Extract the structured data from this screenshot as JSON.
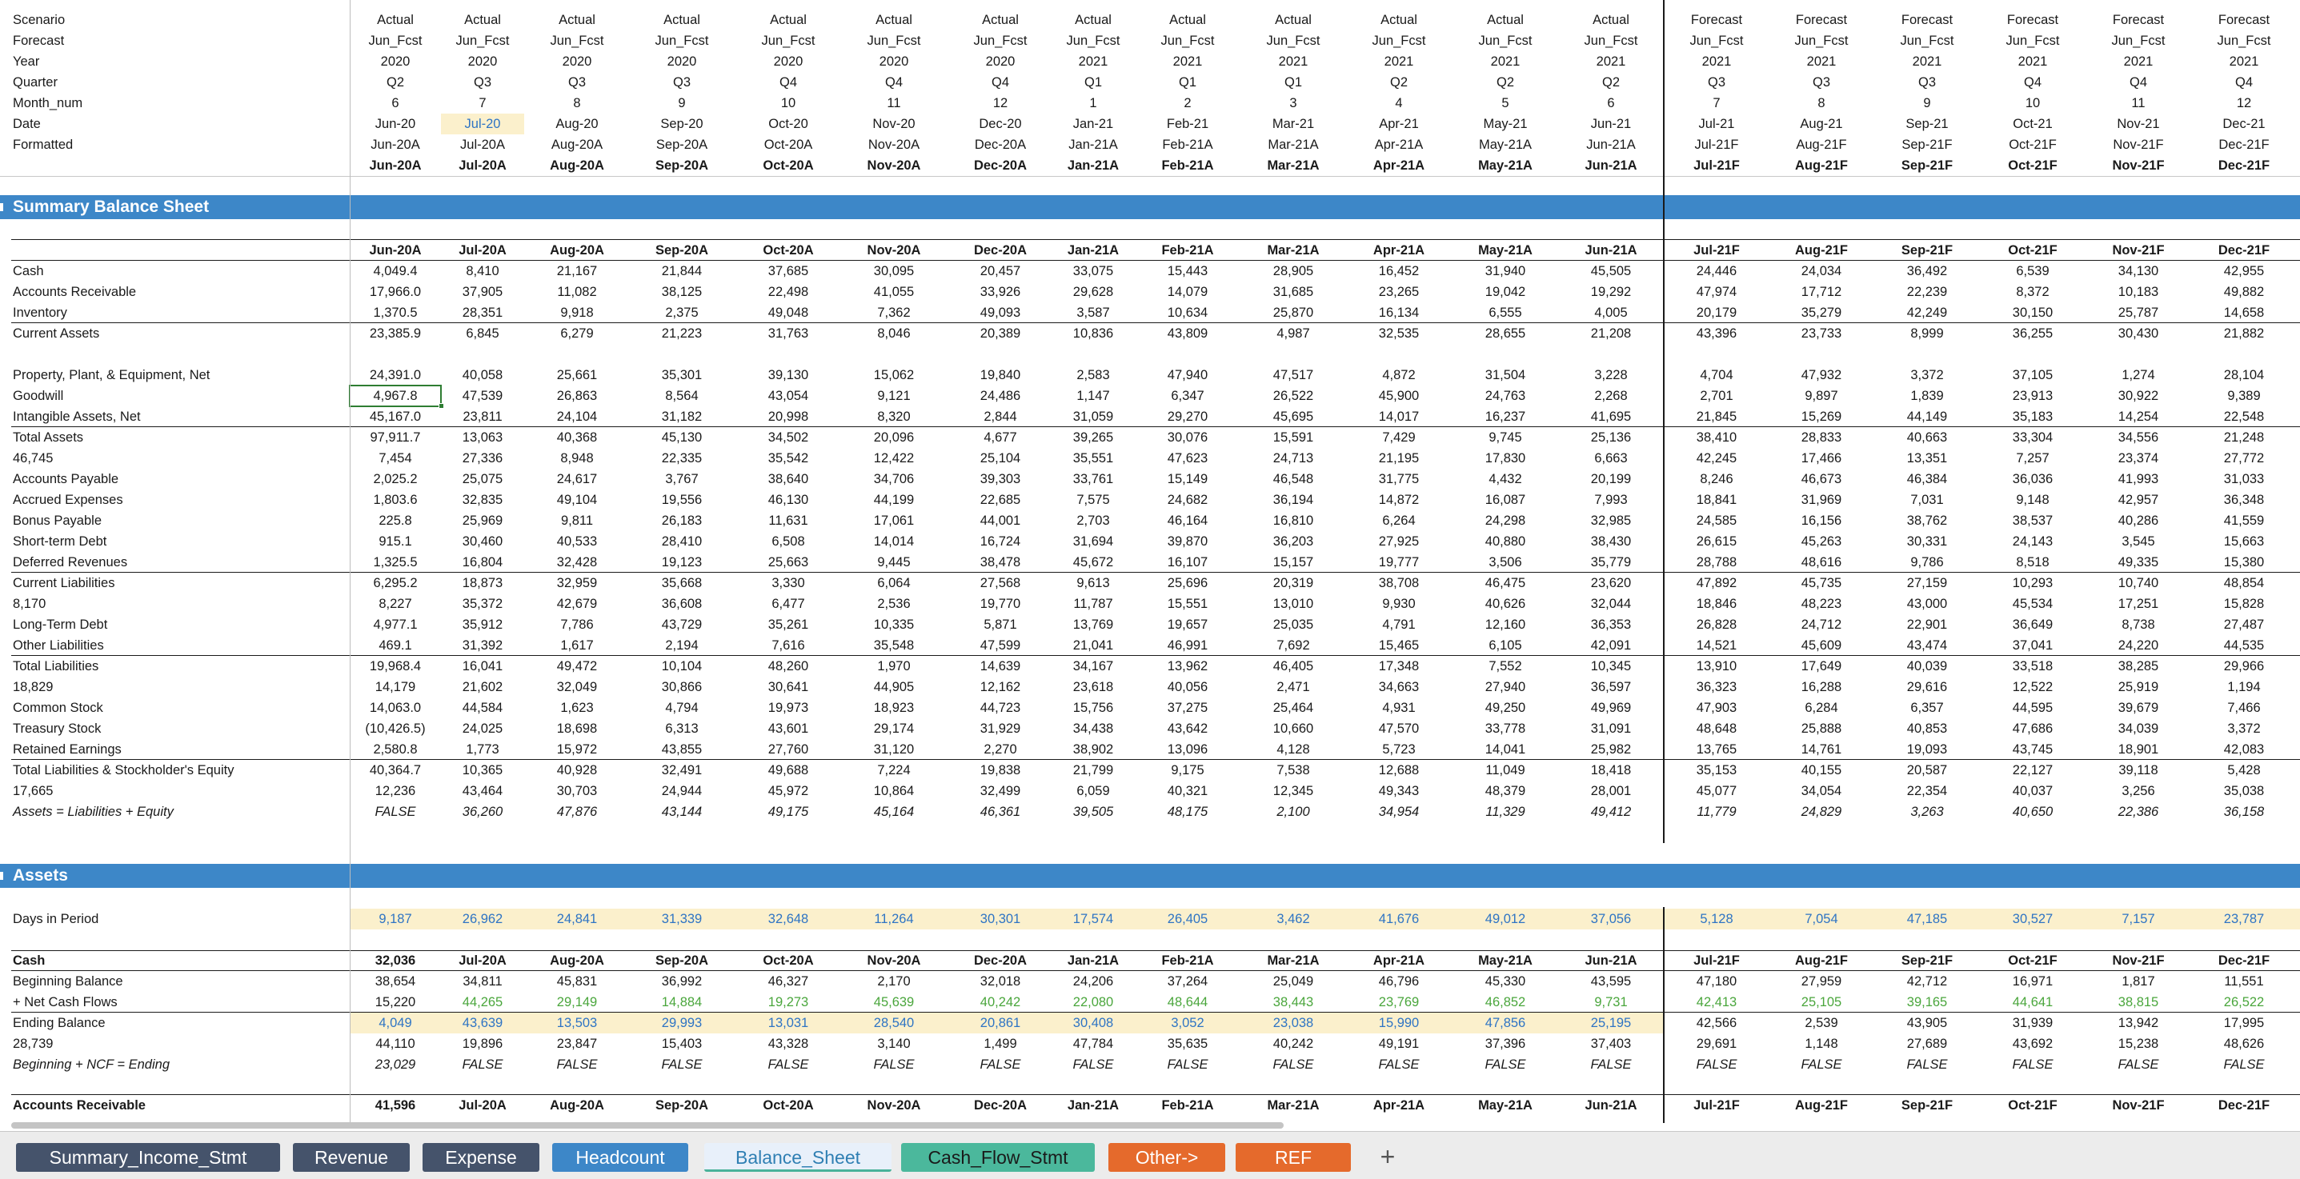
{
  "columns_header": {
    "labels": [
      "Scenario",
      "Forecast",
      "Year",
      "Quarter",
      "Month_num",
      "Date",
      "Formatted"
    ],
    "scenario": [
      "Actual",
      "Actual",
      "Actual",
      "Actual",
      "Actual",
      "Actual",
      "Actual",
      "Actual",
      "Actual",
      "Actual",
      "Actual",
      "Actual",
      "Actual",
      "Forecast",
      "Forecast",
      "Forecast",
      "Forecast",
      "Forecast",
      "Forecast"
    ],
    "forecast": [
      "Jun_Fcst",
      "Jun_Fcst",
      "Jun_Fcst",
      "Jun_Fcst",
      "Jun_Fcst",
      "Jun_Fcst",
      "Jun_Fcst",
      "Jun_Fcst",
      "Jun_Fcst",
      "Jun_Fcst",
      "Jun_Fcst",
      "Jun_Fcst",
      "Jun_Fcst",
      "Jun_Fcst",
      "Jun_Fcst",
      "Jun_Fcst",
      "Jun_Fcst",
      "Jun_Fcst",
      "Jun_Fcst"
    ],
    "year": [
      "2020",
      "2020",
      "2020",
      "2020",
      "2020",
      "2020",
      "2020",
      "2021",
      "2021",
      "2021",
      "2021",
      "2021",
      "2021",
      "2021",
      "2021",
      "2021",
      "2021",
      "2021",
      "2021"
    ],
    "quarter": [
      "Q2",
      "Q3",
      "Q3",
      "Q3",
      "Q4",
      "Q4",
      "Q4",
      "Q1",
      "Q1",
      "Q1",
      "Q2",
      "Q2",
      "Q2",
      "Q3",
      "Q3",
      "Q3",
      "Q4",
      "Q4",
      "Q4"
    ],
    "month_num": [
      "6",
      "7",
      "8",
      "9",
      "10",
      "11",
      "12",
      "1",
      "2",
      "3",
      "4",
      "5",
      "6",
      "7",
      "8",
      "9",
      "10",
      "11",
      "12"
    ],
    "date": [
      "Jun-20",
      "Jul-20",
      "Aug-20",
      "Sep-20",
      "Oct-20",
      "Nov-20",
      "Dec-20",
      "Jan-21",
      "Feb-21",
      "Mar-21",
      "Apr-21",
      "May-21",
      "Jun-21",
      "Jul-21",
      "Aug-21",
      "Sep-21",
      "Oct-21",
      "Nov-21",
      "Dec-21"
    ],
    "formatted": [
      "Jun-20A",
      "Jul-20A",
      "Aug-20A",
      "Sep-20A",
      "Oct-20A",
      "Nov-20A",
      "Dec-20A",
      "Jan-21A",
      "Feb-21A",
      "Mar-21A",
      "Apr-21A",
      "May-21A",
      "Jun-21A",
      "Jul-21F",
      "Aug-21F",
      "Sep-21F",
      "Oct-21F",
      "Nov-21F",
      "Dec-21F"
    ],
    "formatted_bold": [
      "Jun-20A",
      "Jul-20A",
      "Aug-20A",
      "Sep-20A",
      "Oct-20A",
      "Nov-20A",
      "Dec-20A",
      "Jan-21A",
      "Feb-21A",
      "Mar-21A",
      "Apr-21A",
      "May-21A",
      "Jun-21A",
      "Jul-21F",
      "Aug-21F",
      "Sep-21F",
      "Oct-21F",
      "Nov-21F",
      "Dec-21F"
    ]
  },
  "summary_balance_sheet": {
    "title": "Summary Balance Sheet",
    "header": [
      "Jun-20A",
      "Jul-20A",
      "Aug-20A",
      "Sep-20A",
      "Oct-20A",
      "Nov-20A",
      "Dec-20A",
      "Jan-21A",
      "Feb-21A",
      "Mar-21A",
      "Apr-21A",
      "May-21A",
      "Jun-21A",
      "Jul-21F",
      "Aug-21F",
      "Sep-21F",
      "Oct-21F",
      "Nov-21F",
      "Dec-21F"
    ],
    "rows": [
      {
        "label": "Cash",
        "values": [
          "4,049.4",
          "8,410",
          "21,167",
          "21,844",
          "37,685",
          "30,095",
          "20,457",
          "33,075",
          "15,443",
          "28,905",
          "16,452",
          "31,940",
          "45,505",
          "24,446",
          "24,034",
          "36,492",
          "6,539",
          "34,130",
          "42,955"
        ]
      },
      {
        "label": "Accounts Receivable",
        "values": [
          "17,966.0",
          "37,905",
          "11,082",
          "38,125",
          "22,498",
          "41,055",
          "33,926",
          "29,628",
          "14,079",
          "31,685",
          "23,265",
          "19,042",
          "19,292",
          "47,974",
          "17,712",
          "22,239",
          "8,372",
          "10,183",
          "49,882"
        ]
      },
      {
        "label": "Inventory",
        "values": [
          "1,370.5",
          "28,351",
          "9,918",
          "2,375",
          "49,048",
          "7,362",
          "49,093",
          "3,587",
          "10,634",
          "25,870",
          "16,134",
          "6,555",
          "4,005",
          "20,179",
          "35,279",
          "42,249",
          "30,150",
          "25,787",
          "14,658"
        ]
      },
      {
        "label": "Current Assets",
        "values": [
          "23,385.9",
          "6,845",
          "6,279",
          "21,223",
          "31,763",
          "8,046",
          "20,389",
          "10,836",
          "43,809",
          "4,987",
          "32,535",
          "28,655",
          "21,208",
          "43,396",
          "23,733",
          "8,999",
          "36,255",
          "30,430",
          "21,882"
        ]
      },
      {
        "label": "",
        "values": []
      },
      {
        "label": "Property, Plant, & Equipment, Net",
        "values": [
          "24,391.0",
          "40,058",
          "25,661",
          "35,301",
          "39,130",
          "15,062",
          "19,840",
          "2,583",
          "47,940",
          "47,517",
          "4,872",
          "31,504",
          "3,228",
          "4,704",
          "47,932",
          "3,372",
          "37,105",
          "1,274",
          "28,104"
        ]
      },
      {
        "label": "Goodwill",
        "values": [
          "4,967.8",
          "47,539",
          "26,863",
          "8,564",
          "43,054",
          "9,121",
          "24,486",
          "1,147",
          "6,347",
          "26,522",
          "45,900",
          "24,763",
          "2,268",
          "2,701",
          "9,897",
          "1,839",
          "23,913",
          "30,922",
          "9,389"
        ]
      },
      {
        "label": "Intangible Assets, Net",
        "values": [
          "45,167.0",
          "23,811",
          "24,104",
          "31,182",
          "20,998",
          "8,320",
          "2,844",
          "31,059",
          "29,270",
          "45,695",
          "14,017",
          "16,237",
          "41,695",
          "21,845",
          "15,269",
          "44,149",
          "35,183",
          "14,254",
          "22,548"
        ]
      },
      {
        "label": "Total Assets",
        "values": [
          "97,911.7",
          "13,063",
          "40,368",
          "45,130",
          "34,502",
          "20,096",
          "4,677",
          "39,265",
          "30,076",
          "15,591",
          "7,429",
          "9,745",
          "25,136",
          "38,410",
          "28,833",
          "40,663",
          "33,304",
          "34,556",
          "21,248"
        ]
      },
      {
        "label": "46,745",
        "values": [
          "7,454",
          "27,336",
          "8,948",
          "22,335",
          "35,542",
          "12,422",
          "25,104",
          "35,551",
          "47,623",
          "24,713",
          "21,195",
          "17,830",
          "6,663",
          "42,245",
          "17,466",
          "13,351",
          "7,257",
          "23,374",
          "27,772"
        ]
      },
      {
        "label": "Accounts Payable",
        "values": [
          "2,025.2",
          "25,075",
          "24,617",
          "3,767",
          "38,640",
          "34,706",
          "39,303",
          "33,761",
          "15,149",
          "46,548",
          "31,775",
          "4,432",
          "20,199",
          "8,246",
          "46,673",
          "46,384",
          "36,036",
          "41,993",
          "31,033"
        ]
      },
      {
        "label": "Accrued Expenses",
        "values": [
          "1,803.6",
          "32,835",
          "49,104",
          "19,556",
          "46,130",
          "44,199",
          "22,685",
          "7,575",
          "24,682",
          "36,194",
          "14,872",
          "16,087",
          "7,993",
          "18,841",
          "31,969",
          "7,031",
          "9,148",
          "42,957",
          "36,348"
        ]
      },
      {
        "label": "Bonus Payable",
        "values": [
          "225.8",
          "25,969",
          "9,811",
          "26,183",
          "11,631",
          "17,061",
          "44,001",
          "2,703",
          "46,164",
          "16,810",
          "6,264",
          "24,298",
          "32,985",
          "24,585",
          "16,156",
          "38,762",
          "38,537",
          "40,286",
          "41,559"
        ]
      },
      {
        "label": "Short-term Debt",
        "values": [
          "915.1",
          "30,460",
          "40,533",
          "28,410",
          "6,508",
          "14,014",
          "16,724",
          "31,694",
          "39,870",
          "36,203",
          "27,925",
          "40,880",
          "38,430",
          "26,615",
          "45,263",
          "30,331",
          "24,143",
          "3,545",
          "15,663"
        ]
      },
      {
        "label": "Deferred Revenues",
        "values": [
          "1,325.5",
          "16,804",
          "32,428",
          "19,123",
          "25,663",
          "9,445",
          "38,478",
          "45,672",
          "16,107",
          "15,157",
          "19,777",
          "3,506",
          "35,779",
          "28,788",
          "48,616",
          "9,786",
          "8,518",
          "49,335",
          "15,380"
        ]
      },
      {
        "label": "Current Liabilities",
        "values": [
          "6,295.2",
          "18,873",
          "32,959",
          "35,668",
          "3,330",
          "6,064",
          "27,568",
          "9,613",
          "25,696",
          "20,319",
          "38,708",
          "46,475",
          "23,620",
          "47,892",
          "45,735",
          "27,159",
          "10,293",
          "10,740",
          "48,854"
        ]
      },
      {
        "label": "8,170",
        "values": [
          "8,227",
          "35,372",
          "42,679",
          "36,608",
          "6,477",
          "2,536",
          "19,770",
          "11,787",
          "15,551",
          "13,010",
          "9,930",
          "40,626",
          "32,044",
          "18,846",
          "48,223",
          "43,000",
          "45,534",
          "17,251",
          "15,828"
        ]
      },
      {
        "label": "Long-Term Debt",
        "values": [
          "4,977.1",
          "35,912",
          "7,786",
          "43,729",
          "35,261",
          "10,335",
          "5,871",
          "13,769",
          "19,657",
          "25,035",
          "4,791",
          "12,160",
          "36,353",
          "26,828",
          "24,712",
          "22,901",
          "36,649",
          "8,738",
          "27,487"
        ]
      },
      {
        "label": "Other Liabilities",
        "values": [
          "469.1",
          "31,392",
          "1,617",
          "2,194",
          "7,616",
          "35,548",
          "47,599",
          "21,041",
          "46,991",
          "7,692",
          "15,465",
          "6,105",
          "42,091",
          "14,521",
          "45,609",
          "43,474",
          "37,041",
          "24,220",
          "44,535"
        ]
      },
      {
        "label": "Total Liabilities",
        "values": [
          "19,968.4",
          "16,041",
          "49,472",
          "10,104",
          "48,260",
          "1,970",
          "14,639",
          "34,167",
          "13,962",
          "46,405",
          "17,348",
          "7,552",
          "10,345",
          "13,910",
          "17,649",
          "40,039",
          "33,518",
          "38,285",
          "29,966"
        ]
      },
      {
        "label": "18,829",
        "values": [
          "14,179",
          "21,602",
          "32,049",
          "30,866",
          "30,641",
          "44,905",
          "12,162",
          "23,618",
          "40,056",
          "2,471",
          "34,663",
          "27,940",
          "36,597",
          "36,323",
          "16,288",
          "29,616",
          "12,522",
          "25,919",
          "1,194"
        ]
      },
      {
        "label": "Common Stock",
        "values": [
          "14,063.0",
          "44,584",
          "1,623",
          "4,794",
          "19,973",
          "18,923",
          "44,723",
          "15,756",
          "37,275",
          "25,464",
          "4,931",
          "49,250",
          "49,969",
          "47,903",
          "6,284",
          "6,357",
          "44,595",
          "39,679",
          "7,466"
        ]
      },
      {
        "label": "Treasury Stock",
        "values": [
          "(10,426.5)",
          "24,025",
          "18,698",
          "6,313",
          "43,601",
          "29,174",
          "31,929",
          "34,438",
          "43,642",
          "10,660",
          "47,570",
          "33,778",
          "31,091",
          "48,648",
          "25,888",
          "40,853",
          "47,686",
          "34,039",
          "3,372"
        ]
      },
      {
        "label": "Retained Earnings",
        "values": [
          "2,580.8",
          "1,773",
          "15,972",
          "43,855",
          "27,760",
          "31,120",
          "2,270",
          "38,902",
          "13,096",
          "4,128",
          "5,723",
          "14,041",
          "25,982",
          "13,765",
          "14,761",
          "19,093",
          "43,745",
          "18,901",
          "42,083"
        ]
      },
      {
        "label": "Total Liabilities & Stockholder's Equity",
        "values": [
          "40,364.7",
          "10,365",
          "40,928",
          "32,491",
          "49,688",
          "7,224",
          "19,838",
          "21,799",
          "9,175",
          "7,538",
          "12,688",
          "11,049",
          "18,418",
          "35,153",
          "40,155",
          "20,587",
          "22,127",
          "39,118",
          "5,428"
        ]
      },
      {
        "label": "17,665",
        "values": [
          "12,236",
          "43,464",
          "30,703",
          "24,944",
          "45,972",
          "10,864",
          "32,499",
          "6,059",
          "40,321",
          "12,345",
          "49,343",
          "48,379",
          "28,001",
          "45,077",
          "34,054",
          "22,354",
          "40,037",
          "3,256",
          "35,038"
        ]
      },
      {
        "label": "Assets = Liabilities + Equity",
        "values": [
          "FALSE",
          "36,260",
          "47,876",
          "43,144",
          "49,175",
          "45,164",
          "46,361",
          "39,505",
          "48,175",
          "2,100",
          "34,954",
          "11,329",
          "49,412",
          "11,779",
          "24,829",
          "3,263",
          "40,650",
          "22,386",
          "36,158"
        ]
      }
    ]
  },
  "assets": {
    "title": "Assets",
    "days_label": "Days in Period",
    "days": [
      "9,187",
      "26,962",
      "24,841",
      "31,339",
      "32,648",
      "11,264",
      "30,301",
      "17,574",
      "26,405",
      "3,462",
      "41,676",
      "49,012",
      "37,056",
      "5,128",
      "7,054",
      "47,185",
      "30,527",
      "7,157",
      "23,787"
    ],
    "cash": {
      "label": "Cash",
      "first_value": "32,036",
      "header": [
        "Jul-20A",
        "Aug-20A",
        "Sep-20A",
        "Oct-20A",
        "Nov-20A",
        "Dec-20A",
        "Jan-21A",
        "Feb-21A",
        "Mar-21A",
        "Apr-21A",
        "May-21A",
        "Jun-21A",
        "Jul-21F",
        "Aug-21F",
        "Sep-21F",
        "Oct-21F",
        "Nov-21F",
        "Dec-21F"
      ],
      "rows": [
        {
          "label": "Beginning Balance",
          "values": [
            "38,654",
            "34,811",
            "45,831",
            "36,992",
            "46,327",
            "2,170",
            "32,018",
            "24,206",
            "37,264",
            "25,049",
            "46,796",
            "45,330",
            "43,595",
            "47,180",
            "27,959",
            "42,712",
            "16,971",
            "1,817",
            "11,551"
          ]
        },
        {
          "label": "+ Net Cash Flows",
          "values": [
            "15,220",
            "44,265",
            "29,149",
            "14,884",
            "19,273",
            "45,639",
            "40,242",
            "22,080",
            "48,644",
            "38,443",
            "23,769",
            "46,852",
            "9,731",
            "42,413",
            "25,105",
            "39,165",
            "44,641",
            "38,815",
            "26,522"
          ]
        },
        {
          "label": "Ending Balance",
          "values": [
            "4,049",
            "43,639",
            "13,503",
            "29,993",
            "13,031",
            "28,540",
            "20,861",
            "30,408",
            "3,052",
            "23,038",
            "15,990",
            "47,856",
            "25,195",
            "42,566",
            "2,539",
            "43,905",
            "31,939",
            "13,942",
            "17,995"
          ]
        },
        {
          "label": "28,739",
          "values": [
            "44,110",
            "19,896",
            "23,847",
            "15,403",
            "43,328",
            "3,140",
            "1,499",
            "47,784",
            "35,635",
            "40,242",
            "49,191",
            "37,396",
            "37,403",
            "29,691",
            "1,148",
            "27,689",
            "43,692",
            "15,238",
            "48,626"
          ]
        },
        {
          "label": "Beginning + NCF = Ending",
          "values": [
            "23,029",
            "FALSE",
            "FALSE",
            "FALSE",
            "FALSE",
            "FALSE",
            "FALSE",
            "FALSE",
            "FALSE",
            "FALSE",
            "FALSE",
            "FALSE",
            "FALSE",
            "FALSE",
            "FALSE",
            "FALSE",
            "FALSE",
            "FALSE",
            "FALSE"
          ]
        }
      ]
    },
    "ar": {
      "label": "Accounts Receivable",
      "first_value": "41,596",
      "header": [
        "Jul-20A",
        "Aug-20A",
        "Sep-20A",
        "Oct-20A",
        "Nov-20A",
        "Dec-20A",
        "Jan-21A",
        "Feb-21A",
        "Mar-21A",
        "Apr-21A",
        "May-21A",
        "Jun-21A",
        "Jul-21F",
        "Aug-21F",
        "Sep-21F",
        "Oct-21F",
        "Nov-21F",
        "Dec-21F"
      ]
    }
  },
  "tabs": [
    {
      "label": "Summary_Income_Stmt",
      "style": "dark"
    },
    {
      "label": "Revenue",
      "style": "dark"
    },
    {
      "label": "Expense",
      "style": "dark"
    },
    {
      "label": "Headcount",
      "style": "blue"
    },
    {
      "label": "Balance_Sheet",
      "style": "active"
    },
    {
      "label": "Cash_Flow_Stmt",
      "style": "teal"
    },
    {
      "label": "Other->",
      "style": "orange"
    },
    {
      "label": "REF",
      "style": "orange"
    }
  ],
  "add_tab_label": "+",
  "colors": {
    "band": "#3d87c8",
    "highlight": "#fbf0cc",
    "input_blue": "#2e74c4",
    "link_green": "#4aa63c",
    "tab_dark": "#45536b",
    "tab_orange": "#e56a2c",
    "tab_teal": "#4bb89c"
  },
  "selected_cell": "Goodwill / Jun-20A"
}
